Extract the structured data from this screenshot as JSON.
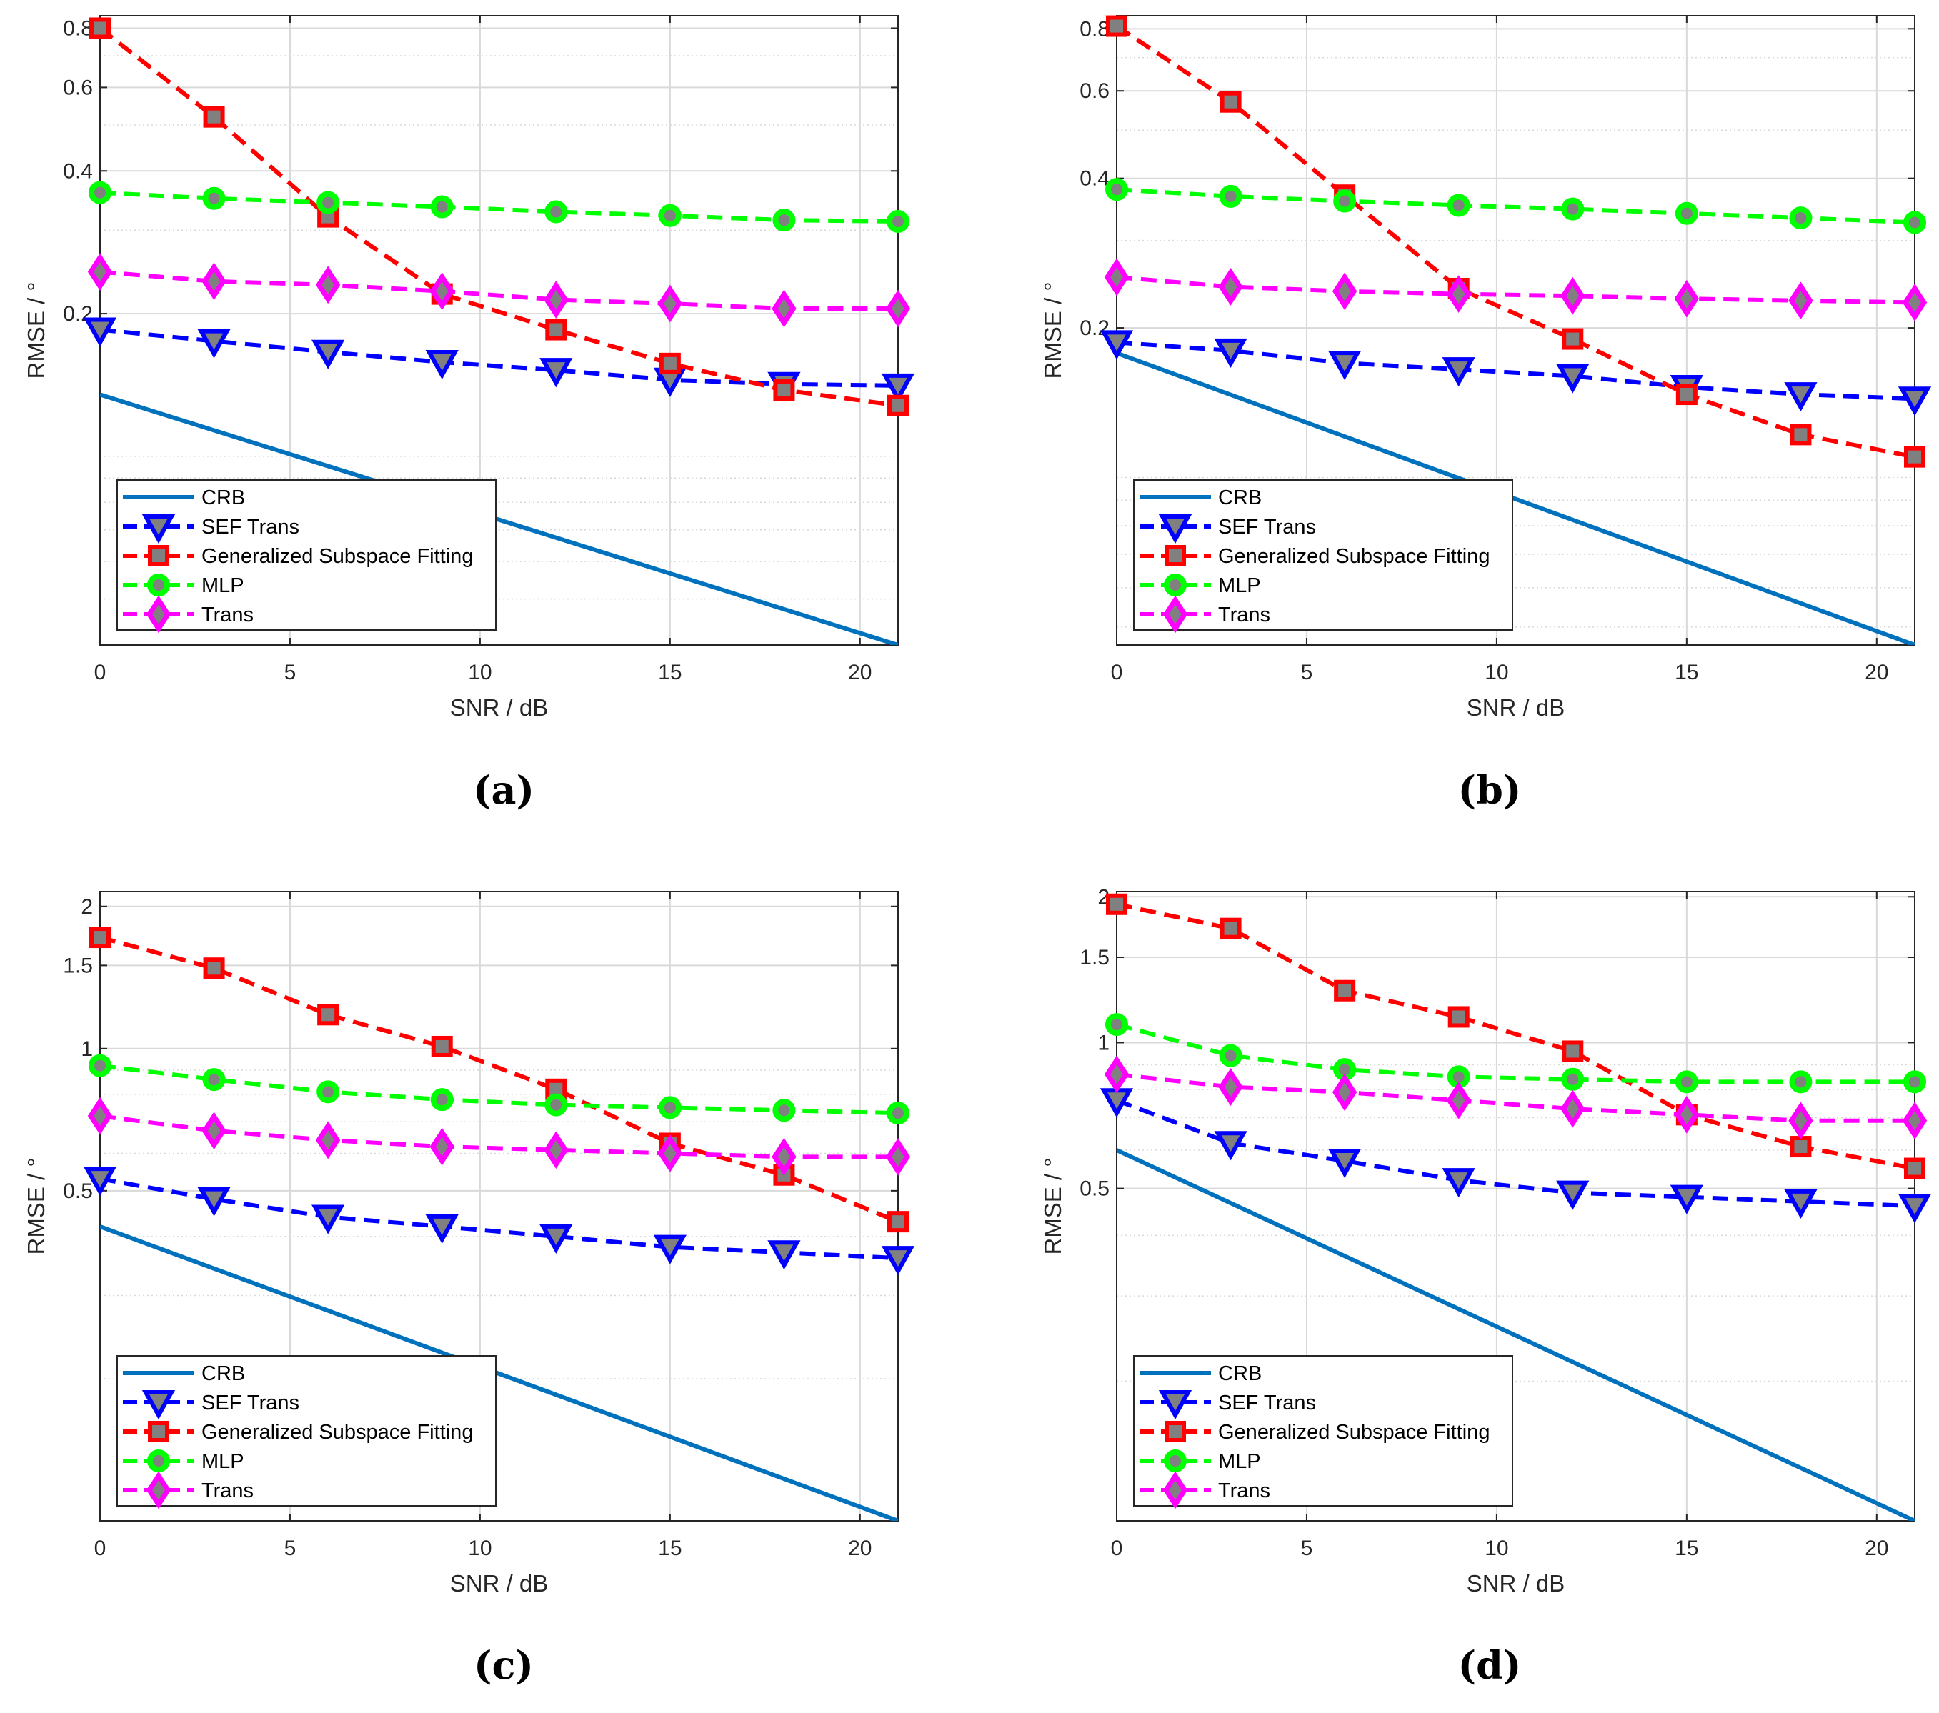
{
  "colors": {
    "CRB": "#0072BD",
    "SEF Trans": "#0000FF",
    "Generalized Subspace Fitting": "#FF0000",
    "MLP": "#00FF00",
    "Trans": "#FF00FF",
    "marker_face": "#808080",
    "grid": "#d9d9d9",
    "axes": "#262626"
  },
  "chart_data": [
    {
      "type": "line",
      "caption": "(a)",
      "yscale": "log",
      "xlabel": "SNR / dB",
      "ylabel": "RMSE / °",
      "xlim": [
        0,
        21
      ],
      "ylim": [
        0.04,
        0.85
      ],
      "xticks": [
        0,
        5,
        10,
        15,
        20
      ],
      "xtick_labels": [
        "0",
        "5",
        "10",
        "15",
        "20"
      ],
      "yticks": [
        0.2,
        0.4,
        0.6,
        0.8
      ],
      "ytick_labels": [
        "0.2",
        "0.4",
        "0.6",
        "0.8"
      ],
      "legend_position": "bottom-left",
      "series": [
        {
          "name": "CRB",
          "marker": "none",
          "line": "solid",
          "x": [
            0,
            21
          ],
          "y": [
            0.135,
            0.04
          ]
        },
        {
          "name": "SEF Trans",
          "marker": "triangle-down",
          "line": "dashed",
          "x": [
            0,
            3,
            6,
            9,
            12,
            15,
            18,
            21
          ],
          "y": [
            0.185,
            0.175,
            0.166,
            0.158,
            0.152,
            0.145,
            0.142,
            0.141
          ]
        },
        {
          "name": "Generalized Subspace Fitting",
          "marker": "square",
          "line": "dashed",
          "x": [
            0,
            3,
            6,
            9,
            12,
            15,
            18,
            21
          ],
          "y": [
            0.8,
            0.52,
            0.32,
            0.22,
            0.185,
            0.157,
            0.138,
            0.128
          ]
        },
        {
          "name": "MLP",
          "marker": "circle",
          "line": "dashed",
          "x": [
            0,
            3,
            6,
            9,
            12,
            15,
            18,
            21
          ],
          "y": [
            0.36,
            0.35,
            0.343,
            0.336,
            0.328,
            0.322,
            0.315,
            0.313
          ]
        },
        {
          "name": "Trans",
          "marker": "diamond",
          "line": "dashed",
          "x": [
            0,
            3,
            6,
            9,
            12,
            15,
            18,
            21
          ],
          "y": [
            0.245,
            0.234,
            0.23,
            0.223,
            0.214,
            0.21,
            0.205,
            0.205
          ]
        }
      ]
    },
    {
      "type": "line",
      "caption": "(b)",
      "yscale": "log",
      "xlabel": "SNR / dB",
      "ylabel": "RMSE / °",
      "xlim": [
        0,
        21
      ],
      "ylim": [
        0.046,
        0.85
      ],
      "xticks": [
        0,
        5,
        10,
        15,
        20
      ],
      "xtick_labels": [
        "0",
        "5",
        "10",
        "15",
        "20"
      ],
      "yticks": [
        0.2,
        0.4,
        0.6,
        0.8
      ],
      "ytick_labels": [
        "0.2",
        "0.4",
        "0.6",
        "0.8"
      ],
      "legend_position": "bottom-left",
      "series": [
        {
          "name": "CRB",
          "marker": "none",
          "line": "solid",
          "x": [
            0,
            21
          ],
          "y": [
            0.178,
            0.046
          ]
        },
        {
          "name": "SEF Trans",
          "marker": "triangle-down",
          "line": "dashed",
          "x": [
            0,
            3,
            6,
            9,
            12,
            15,
            18,
            21
          ],
          "y": [
            0.187,
            0.18,
            0.17,
            0.165,
            0.16,
            0.152,
            0.147,
            0.144
          ]
        },
        {
          "name": "Generalized Subspace Fitting",
          "marker": "square",
          "line": "dashed",
          "x": [
            0,
            3,
            6,
            9,
            12,
            15,
            18,
            21
          ],
          "y": [
            0.81,
            0.57,
            0.37,
            0.24,
            0.19,
            0.147,
            0.122,
            0.11
          ]
        },
        {
          "name": "MLP",
          "marker": "circle",
          "line": "dashed",
          "x": [
            0,
            3,
            6,
            9,
            12,
            15,
            18,
            21
          ],
          "y": [
            0.38,
            0.368,
            0.36,
            0.353,
            0.347,
            0.34,
            0.333,
            0.326
          ]
        },
        {
          "name": "Trans",
          "marker": "diamond",
          "line": "dashed",
          "x": [
            0,
            3,
            6,
            9,
            12,
            15,
            18,
            21
          ],
          "y": [
            0.253,
            0.242,
            0.237,
            0.234,
            0.232,
            0.229,
            0.227,
            0.225
          ]
        }
      ]
    },
    {
      "type": "line",
      "caption": "(c)",
      "yscale": "log",
      "xlabel": "SNR / dB",
      "ylabel": "RMSE / °",
      "xlim": [
        0,
        21
      ],
      "ylim": [
        0.1,
        2.15
      ],
      "xticks": [
        0,
        5,
        10,
        15,
        20
      ],
      "xtick_labels": [
        "0",
        "5",
        "10",
        "15",
        "20"
      ],
      "yticks": [
        0.5,
        1,
        1.5,
        2
      ],
      "ytick_labels": [
        "0.5",
        "1",
        "1.5",
        "2"
      ],
      "legend_position": "bottom-left",
      "series": [
        {
          "name": "CRB",
          "marker": "none",
          "line": "solid",
          "x": [
            0,
            21
          ],
          "y": [
            0.42,
            0.1
          ]
        },
        {
          "name": "SEF Trans",
          "marker": "triangle-down",
          "line": "dashed",
          "x": [
            0,
            3,
            6,
            9,
            12,
            15,
            18,
            21
          ],
          "y": [
            0.53,
            0.48,
            0.44,
            0.42,
            0.4,
            0.38,
            0.37,
            0.36
          ]
        },
        {
          "name": "Generalized Subspace Fitting",
          "marker": "square",
          "line": "dashed",
          "x": [
            0,
            3,
            6,
            9,
            12,
            15,
            18,
            21
          ],
          "y": [
            1.72,
            1.48,
            1.18,
            1.01,
            0.82,
            0.63,
            0.54,
            0.43
          ]
        },
        {
          "name": "MLP",
          "marker": "circle",
          "line": "dashed",
          "x": [
            0,
            3,
            6,
            9,
            12,
            15,
            18,
            21
          ],
          "y": [
            0.92,
            0.86,
            0.81,
            0.78,
            0.76,
            0.75,
            0.74,
            0.73
          ]
        },
        {
          "name": "Trans",
          "marker": "diamond",
          "line": "dashed",
          "x": [
            0,
            3,
            6,
            9,
            12,
            15,
            18,
            21
          ],
          "y": [
            0.72,
            0.67,
            0.64,
            0.62,
            0.61,
            0.6,
            0.59,
            0.59
          ]
        }
      ]
    },
    {
      "type": "line",
      "caption": "(d)",
      "yscale": "log",
      "xlabel": "SNR / dB",
      "ylabel": "RMSE / °",
      "xlim": [
        0,
        21
      ],
      "ylim": [
        0.103,
        2.05
      ],
      "xticks": [
        0,
        5,
        10,
        15,
        20
      ],
      "xtick_labels": [
        "0",
        "5",
        "10",
        "15",
        "20"
      ],
      "yticks": [
        0.5,
        1,
        1.5,
        2
      ],
      "ytick_labels": [
        "0.5",
        "1",
        "1.5",
        "2"
      ],
      "legend_position": "bottom-left",
      "series": [
        {
          "name": "CRB",
          "marker": "none",
          "line": "solid",
          "x": [
            0,
            21
          ],
          "y": [
            0.6,
            0.103
          ]
        },
        {
          "name": "SEF Trans",
          "marker": "triangle-down",
          "line": "dashed",
          "x": [
            0,
            3,
            6,
            9,
            12,
            15,
            18,
            21
          ],
          "y": [
            0.76,
            0.62,
            0.57,
            0.52,
            0.49,
            0.48,
            0.47,
            0.46
          ]
        },
        {
          "name": "Generalized Subspace Fitting",
          "marker": "square",
          "line": "dashed",
          "x": [
            0,
            3,
            6,
            9,
            12,
            15,
            18,
            21
          ],
          "y": [
            1.93,
            1.72,
            1.28,
            1.13,
            0.96,
            0.71,
            0.61,
            0.55
          ]
        },
        {
          "name": "MLP",
          "marker": "circle",
          "line": "dashed",
          "x": [
            0,
            3,
            6,
            9,
            12,
            15,
            18,
            21
          ],
          "y": [
            1.09,
            0.94,
            0.88,
            0.85,
            0.84,
            0.83,
            0.83,
            0.83
          ]
        },
        {
          "name": "Trans",
          "marker": "diamond",
          "line": "dashed",
          "x": [
            0,
            3,
            6,
            9,
            12,
            15,
            18,
            21
          ],
          "y": [
            0.86,
            0.81,
            0.79,
            0.76,
            0.73,
            0.71,
            0.69,
            0.69
          ]
        }
      ]
    }
  ]
}
